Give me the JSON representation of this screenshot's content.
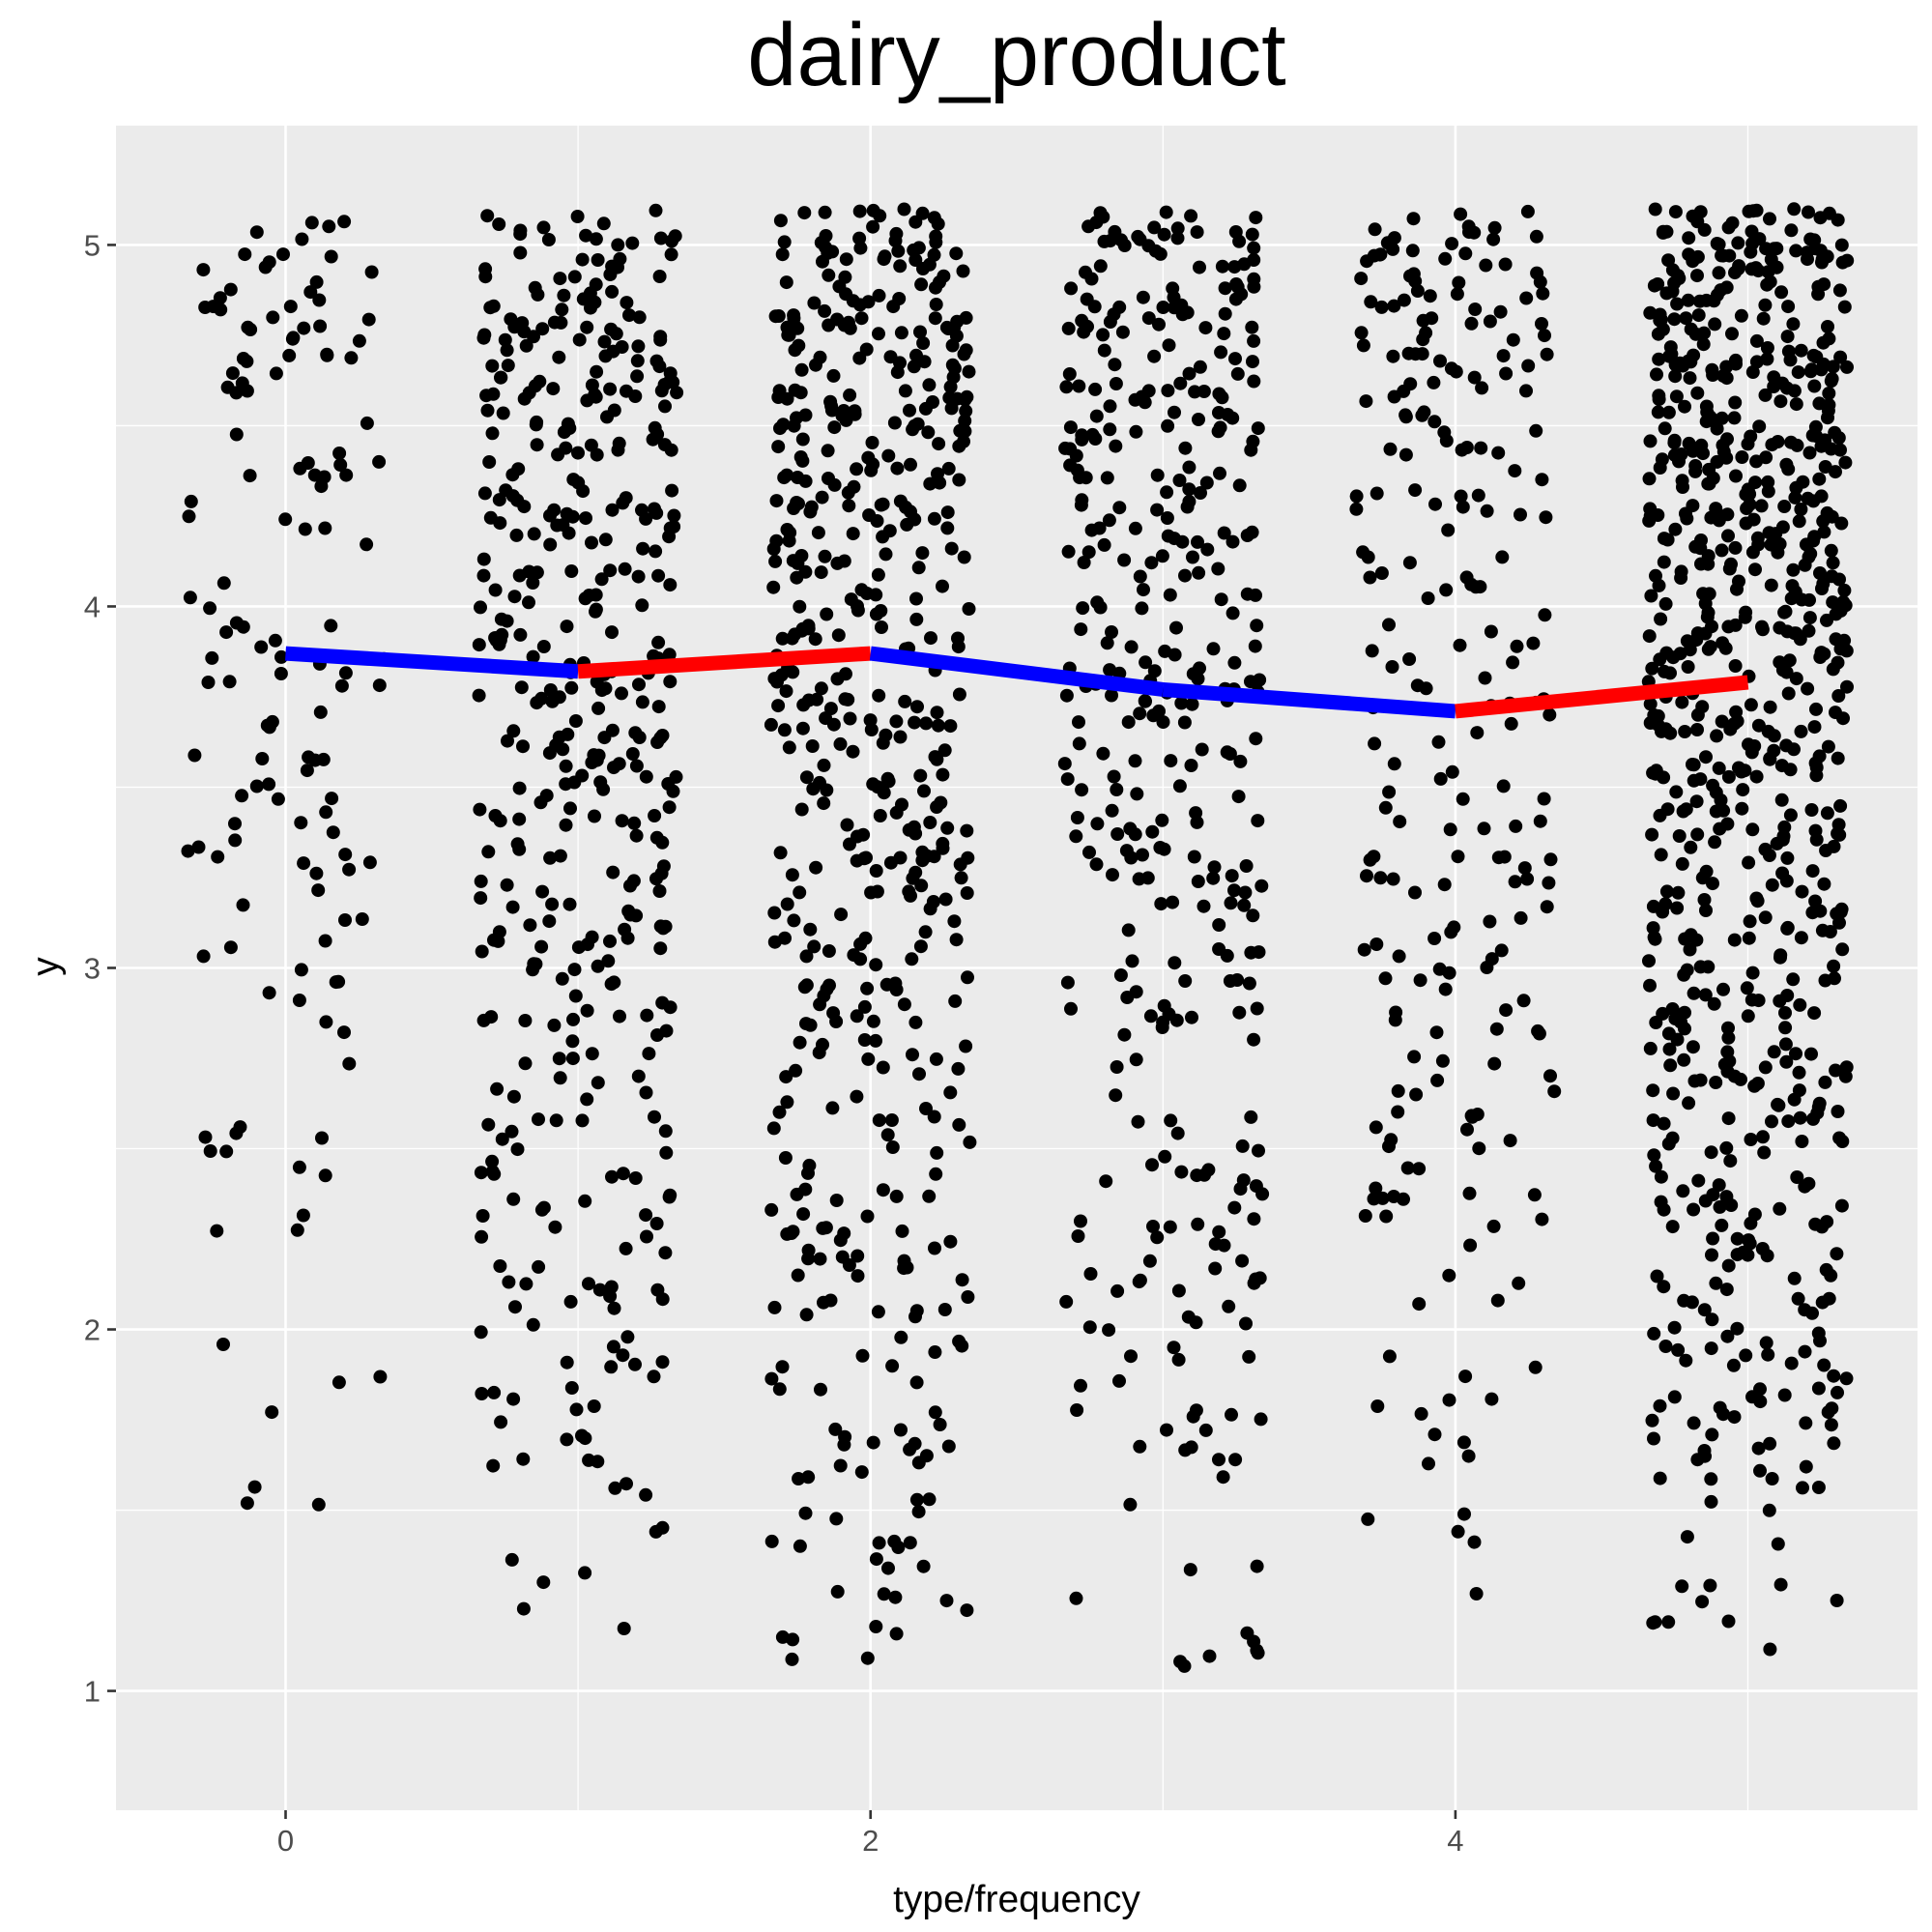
{
  "chart_data": {
    "type": "scatter",
    "title": "dairy_product",
    "xlabel": "type/frequency",
    "ylabel": "y",
    "xlim": [
      -0.58,
      5.58
    ],
    "ylim": [
      0.67,
      5.33
    ],
    "x_ticks": [
      0,
      2,
      4
    ],
    "y_ticks": [
      1,
      2,
      3,
      4,
      5
    ],
    "grid": true,
    "background": "#ebebeb",
    "point_color": "#000000",
    "jitter_groups": [
      {
        "x": 0,
        "count": 140,
        "y_range": [
          1.3,
          5.07
        ],
        "concentration": "upper"
      },
      {
        "x": 1,
        "count": 430,
        "y_range": [
          1.1,
          5.1
        ],
        "concentration": "upper"
      },
      {
        "x": 2,
        "count": 520,
        "y_range": [
          0.97,
          5.1
        ],
        "concentration": "upper"
      },
      {
        "x": 3,
        "count": 380,
        "y_range": [
          0.9,
          5.1
        ],
        "concentration": "upper"
      },
      {
        "x": 4,
        "count": 240,
        "y_range": [
          1.05,
          5.1
        ],
        "concentration": "upper"
      },
      {
        "x": 5,
        "count": 760,
        "y_range": [
          1.02,
          5.1
        ],
        "concentration": "upper"
      }
    ],
    "mean_line": {
      "x": [
        0,
        1,
        2,
        3,
        4,
        5
      ],
      "y": [
        3.87,
        3.82,
        3.87,
        3.77,
        3.71,
        3.79
      ],
      "segment_colors": [
        "#0000ff",
        "#ff0000",
        "#0000ff",
        "#0000ff",
        "#ff0000"
      ]
    }
  }
}
